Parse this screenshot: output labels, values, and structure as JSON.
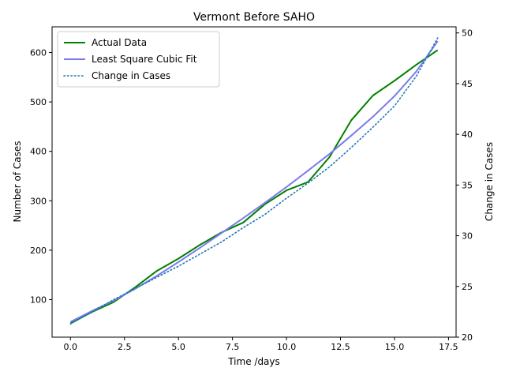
{
  "chart_data": {
    "type": "line",
    "title": "Vermont Before SAHO",
    "xlabel": "Time /days",
    "ylabel": "Number of Cases",
    "y2label": "Change in Cases",
    "xlim": [
      -0.85,
      17.85
    ],
    "ylim": [
      24,
      652
    ],
    "y2lim": [
      20.0,
      50.6
    ],
    "xticks": [
      0.0,
      2.5,
      5.0,
      7.5,
      10.0,
      12.5,
      15.0,
      17.5
    ],
    "xtick_labels": [
      "0.0",
      "2.5",
      "5.0",
      "7.5",
      "10.0",
      "12.5",
      "15.0",
      "17.5"
    ],
    "yticks": [
      100,
      200,
      300,
      400,
      500,
      600
    ],
    "yticks_labels": [
      "100",
      "200",
      "300",
      "400",
      "500",
      "600"
    ],
    "y2ticks": [
      20,
      25,
      30,
      35,
      40,
      45,
      50
    ],
    "y2tick_labels": [
      "20",
      "25",
      "30",
      "35",
      "40",
      "45",
      "50"
    ],
    "legend_position": "top-left",
    "grid": false,
    "series": [
      {
        "name": "Actual Data",
        "axis": "left",
        "color": "#008000",
        "style": "solid",
        "x": [
          0,
          1,
          2,
          3,
          4,
          5,
          6,
          7,
          8,
          9,
          10,
          11,
          12,
          13,
          14,
          15,
          16,
          17
        ],
        "values": [
          52,
          75,
          95,
          125,
          158,
          183,
          211,
          236,
          256,
          293,
          321,
          338,
          389,
          463,
          513,
          543,
          575,
          605
        ]
      },
      {
        "name": "Least Square Cubic Fit",
        "axis": "left",
        "color": "#7b7bf0",
        "style": "solid",
        "x": [
          0,
          1,
          2,
          3,
          4,
          5,
          6,
          7,
          8,
          9,
          10,
          11,
          12,
          13,
          14,
          15,
          16,
          17
        ],
        "values": [
          55,
          77,
          98,
          122,
          148,
          176,
          205,
          235,
          265,
          296,
          328,
          361,
          395,
          432,
          470,
          512,
          561,
          623
        ]
      },
      {
        "name": "Change in Cases",
        "axis": "right",
        "color": "#1f77b4",
        "style": "dotted",
        "x": [
          0,
          1,
          2,
          3,
          4,
          5,
          6,
          7,
          8,
          9,
          10,
          11,
          12,
          13,
          14,
          15,
          16,
          17
        ],
        "values": [
          21.3,
          22.5,
          23.7,
          24.8,
          25.9,
          27.0,
          28.2,
          29.4,
          30.8,
          32.1,
          33.7,
          35.2,
          36.8,
          38.7,
          40.7,
          42.8,
          45.7,
          49.5
        ]
      }
    ]
  }
}
